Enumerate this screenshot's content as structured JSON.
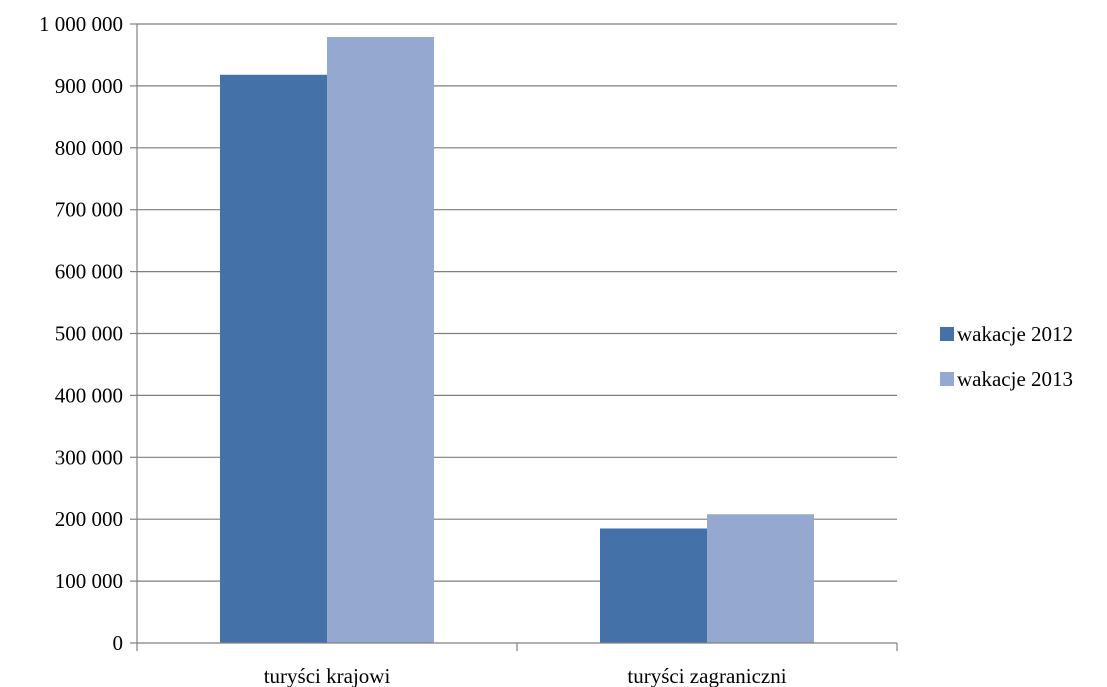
{
  "chart_data": {
    "type": "bar",
    "title": "",
    "xlabel": "",
    "ylabel": "",
    "categories": [
      "turyści krajowi",
      "turyści zagraniczni"
    ],
    "series": [
      {
        "name": "wakacje 2012",
        "values": [
          918000,
          185000
        ]
      },
      {
        "name": "wakacje 2013",
        "values": [
          979000,
          208000
        ]
      }
    ],
    "ylim": [
      0,
      1000000
    ],
    "yticks": [
      0,
      100000,
      200000,
      300000,
      400000,
      500000,
      600000,
      700000,
      800000,
      900000,
      1000000
    ],
    "ytick_labels": [
      "0",
      "100 000",
      "200 000",
      "300 000",
      "400 000",
      "500 000",
      "600 000",
      "700 000",
      "800 000",
      "900 000",
      "1 000 000"
    ],
    "grid": true,
    "legend_position": "right",
    "colors": [
      "#4472A8",
      "#95A9D0"
    ],
    "grid_color": "#7f7f7f",
    "axis_color": "#808080"
  }
}
